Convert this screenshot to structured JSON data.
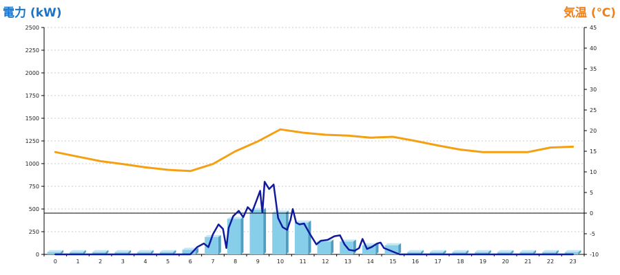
{
  "titles": {
    "left": "電力 (kW)",
    "right": "気温 (℃)"
  },
  "colors": {
    "left_title": "#1a73c8",
    "right_title": "#f07f1a",
    "temperature_line": "#f5a012",
    "power_line": "#0f1a9c",
    "bar_front": "#87ceeb",
    "bar_side": "#4f9ec2",
    "bar_top": "#c4e6f5",
    "grid": "#c8c8c8",
    "zero_line": "#000000"
  },
  "chart_data": {
    "type": "bar",
    "title": "",
    "categories": [
      "0",
      "1",
      "2",
      "3",
      "4",
      "5",
      "6",
      "7",
      "8",
      "9",
      "10",
      "11",
      "12",
      "13",
      "14",
      "15",
      "16",
      "17",
      "18",
      "19",
      "20",
      "21",
      "22",
      "23"
    ],
    "y_left": {
      "label": "電力 (kW)",
      "range": [
        0,
        2500
      ],
      "ticks": [
        0,
        250,
        500,
        750,
        1000,
        1250,
        1500,
        1750,
        2000,
        2250,
        2500
      ]
    },
    "y_right": {
      "label": "気温 (℃)",
      "range": [
        -10,
        45
      ],
      "ticks": [
        -10,
        -5,
        0,
        5,
        10,
        15,
        20,
        25,
        30,
        35,
        40,
        45
      ]
    },
    "grid": "horizontal dashed",
    "series": [
      {
        "type": "bar",
        "axis": "left",
        "values": [
          25,
          25,
          25,
          25,
          25,
          25,
          50,
          190,
          390,
          490,
          460,
          350,
          140,
          140,
          100,
          100,
          25,
          25,
          25,
          25,
          25,
          25,
          25,
          25
        ]
      },
      {
        "type": "line",
        "axis": "right",
        "x": [
          0,
          1,
          2,
          3,
          4,
          5,
          6,
          7,
          8,
          9,
          10,
          11,
          12,
          13,
          14,
          15,
          16,
          17,
          18,
          19,
          20,
          21,
          22,
          23
        ],
        "values": [
          14.8,
          13.7,
          12.6,
          11.9,
          11.1,
          10.5,
          10.2,
          11.9,
          15.0,
          17.4,
          20.3,
          19.5,
          19.0,
          18.8,
          18.3,
          18.5,
          17.5,
          16.4,
          15.4,
          14.8,
          14.8,
          14.8,
          15.9,
          16.1
        ]
      },
      {
        "type": "line",
        "axis": "left",
        "x": [
          0,
          1,
          2,
          3,
          4,
          5,
          6,
          6.3,
          6.6,
          6.8,
          7,
          7.25,
          7.45,
          7.6,
          7.7,
          7.9,
          8.15,
          8.35,
          8.55,
          8.75,
          8.95,
          9.1,
          9.2,
          9.3,
          9.5,
          9.7,
          9.9,
          10.1,
          10.3,
          10.45,
          10.55,
          10.7,
          10.85,
          11.05,
          11.3,
          11.6,
          11.8,
          12.1,
          12.4,
          12.65,
          12.85,
          13.05,
          13.3,
          13.5,
          13.65,
          13.85,
          14.05,
          14.3,
          14.45,
          14.6,
          14.8,
          15.1,
          15.3,
          16,
          17,
          18,
          19,
          20,
          21,
          22,
          23
        ],
        "values": [
          0,
          0,
          0,
          0,
          0,
          0,
          0,
          80,
          120,
          80,
          220,
          330,
          280,
          70,
          290,
          420,
          480,
          410,
          520,
          470,
          600,
          700,
          460,
          800,
          720,
          770,
          400,
          300,
          270,
          380,
          500,
          350,
          330,
          340,
          230,
          110,
          150,
          160,
          200,
          210,
          110,
          50,
          40,
          70,
          170,
          60,
          80,
          120,
          130,
          70,
          50,
          20,
          0,
          0,
          0,
          0,
          0,
          0,
          0,
          0,
          0
        ]
      }
    ],
    "reference_line": {
      "axis": "right",
      "value": 0
    }
  }
}
